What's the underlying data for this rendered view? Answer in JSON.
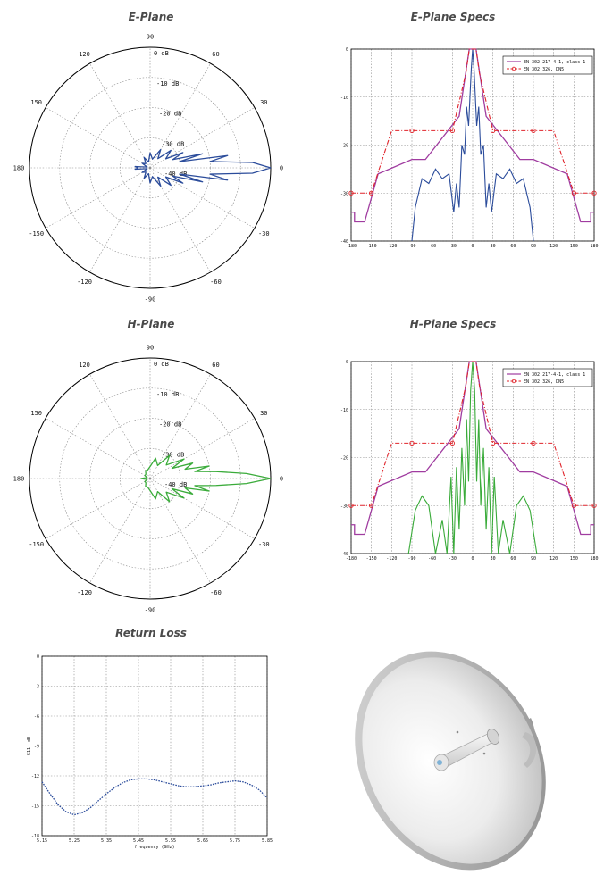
{
  "titles": {
    "e_plane": "E-Plane",
    "e_specs": "E-Plane Specs",
    "h_plane": "H-Plane",
    "h_specs": "H-Plane Specs",
    "return_loss": "Return Loss"
  },
  "polar_labels": {
    "angles": [
      "90",
      "60",
      "30",
      "0",
      "-30",
      "-60",
      "-90",
      "-120",
      "-150",
      "180",
      "150",
      "120"
    ],
    "rings": [
      "0 dB",
      "-10 dB",
      "-20 dB",
      "-30 dB",
      "-40 dB"
    ]
  },
  "specs_legend": [
    "EN 302 217-4-1, class 1",
    "EN 302 326, DN5"
  ],
  "specs_axis": {
    "y_ticks": [
      "0",
      "-10",
      "-20",
      "-30",
      "-40"
    ],
    "x_ticks": [
      "-180",
      "-150",
      "-120",
      "-90",
      "-60",
      "-30",
      "0",
      "30",
      "60",
      "90",
      "120",
      "150",
      "180"
    ]
  },
  "return_axis": {
    "xlabel": "frequency (GHz)",
    "ylabel": "S11| dB",
    "y_ticks": [
      "0",
      "-3",
      "-6",
      "-9",
      "-12",
      "-15",
      "-18"
    ],
    "x_ticks": [
      "5.15",
      "5.25",
      "5.35",
      "5.45",
      "5.55",
      "5.65",
      "5.75",
      "5.85"
    ]
  },
  "colors": {
    "e_plane": "#2b4c9b",
    "h_plane": "#3aab3a",
    "mask_class1": "#a03ca0",
    "mask_dn5": "#e0242b",
    "return_loss": "#2b4c9b"
  },
  "chart_data": [
    {
      "id": "e_plane_polar",
      "type": "line",
      "title": "E-Plane",
      "coordinate_system": "polar",
      "r_range_db": [
        -40,
        0
      ],
      "angle_deg": [
        0,
        3,
        6,
        9,
        12,
        15,
        20,
        25,
        30,
        40,
        50,
        60,
        75,
        90,
        105,
        120,
        135,
        150,
        165,
        175,
        180
      ],
      "gain_db": [
        0,
        -6,
        -20,
        -14,
        -30,
        -22,
        -32,
        -28,
        -34,
        -31,
        -36,
        -33,
        -37,
        -35,
        -38,
        -36,
        -38,
        -37,
        -39,
        -35,
        -36
      ]
    },
    {
      "id": "e_plane_specs",
      "type": "line",
      "title": "E-Plane Specs",
      "xlim": [
        -180,
        180
      ],
      "ylim": [
        -40,
        0
      ],
      "series": [
        {
          "name": "EN 302 217-4-1, class 1",
          "x": [
            -180,
            -175,
            -175,
            -160,
            -140,
            -90,
            -70,
            -20,
            -5,
            5,
            20,
            70,
            90,
            140,
            160,
            175,
            175,
            180
          ],
          "y": [
            -34,
            -34,
            -36,
            -36,
            -26,
            -23,
            -23,
            -14,
            0,
            0,
            -14,
            -23,
            -23,
            -26,
            -36,
            -36,
            -34,
            -34
          ]
        },
        {
          "name": "EN 302 326, DN5",
          "x": [
            -180,
            -150,
            -120,
            -90,
            -30,
            -10,
            -5,
            5,
            10,
            30,
            90,
            120,
            150,
            180
          ],
          "y": [
            -30,
            -30,
            -17,
            -17,
            -17,
            -5,
            0,
            0,
            -5,
            -17,
            -17,
            -17,
            -30,
            -30
          ]
        },
        {
          "name": "",
          "x": [
            -90,
            -85,
            -75,
            -65,
            -55,
            -45,
            -35,
            -28,
            -24,
            -20,
            -16,
            -12,
            -9,
            -6,
            -4,
            -2,
            0,
            2,
            4,
            6,
            9,
            12,
            16,
            20,
            24,
            28,
            35,
            45,
            55,
            65,
            75,
            85,
            90
          ],
          "y": [
            -40,
            -33,
            -27,
            -28,
            -25,
            -27,
            -26,
            -34,
            -28,
            -33,
            -20,
            -22,
            -12,
            -16,
            -10,
            -4,
            0,
            -4,
            -10,
            -16,
            -12,
            -22,
            -20,
            -33,
            -28,
            -34,
            -26,
            -27,
            -25,
            -28,
            -27,
            -33,
            -40
          ]
        }
      ]
    },
    {
      "id": "h_plane_polar",
      "type": "line",
      "title": "H-Plane",
      "coordinate_system": "polar",
      "r_range_db": [
        -40,
        0
      ],
      "angle_deg": [
        0,
        3,
        6,
        9,
        12,
        15,
        20,
        25,
        30,
        40,
        50,
        60,
        75,
        90,
        105,
        120,
        135,
        150,
        165,
        175,
        180
      ],
      "gain_db": [
        0,
        -8,
        -18,
        -25,
        -20,
        -28,
        -25,
        -32,
        -27,
        -33,
        -30,
        -35,
        -33,
        -36,
        -37,
        -37,
        -38,
        -38,
        -39,
        -38,
        -37
      ]
    },
    {
      "id": "h_plane_specs",
      "type": "line",
      "title": "H-Plane Specs",
      "xlim": [
        -180,
        180
      ],
      "ylim": [
        -40,
        0
      ],
      "series": [
        {
          "name": "EN 302 217-4-1, class 1",
          "x": [
            -180,
            -175,
            -175,
            -160,
            -140,
            -90,
            -70,
            -20,
            -5,
            5,
            20,
            70,
            90,
            140,
            160,
            175,
            175,
            180
          ],
          "y": [
            -34,
            -34,
            -36,
            -36,
            -26,
            -23,
            -23,
            -14,
            0,
            0,
            -14,
            -23,
            -23,
            -26,
            -36,
            -36,
            -34,
            -34
          ]
        },
        {
          "name": "EN 302 326, DN5",
          "x": [
            -180,
            -150,
            -120,
            -90,
            -30,
            -10,
            -5,
            5,
            10,
            30,
            90,
            120,
            150,
            180
          ],
          "y": [
            -30,
            -30,
            -17,
            -17,
            -17,
            -5,
            0,
            0,
            -5,
            -17,
            -17,
            -17,
            -30,
            -30
          ]
        },
        {
          "name": "",
          "x": [
            -95,
            -85,
            -75,
            -65,
            -55,
            -45,
            -38,
            -32,
            -28,
            -24,
            -20,
            -16,
            -12,
            -9,
            -6,
            -3,
            0,
            3,
            6,
            9,
            12,
            16,
            20,
            24,
            28,
            32,
            38,
            45,
            55,
            65,
            75,
            85,
            95
          ],
          "y": [
            -40,
            -31,
            -28,
            -30,
            -40,
            -33,
            -40,
            -24,
            -40,
            -22,
            -35,
            -18,
            -30,
            -12,
            -25,
            -6,
            0,
            -6,
            -25,
            -12,
            -30,
            -18,
            -35,
            -22,
            -40,
            -24,
            -40,
            -33,
            -40,
            -30,
            -28,
            -31,
            -40
          ]
        }
      ]
    },
    {
      "id": "return_loss",
      "type": "line",
      "title": "Return Loss",
      "xlabel": "frequency (GHz)",
      "ylabel": "S11| dB",
      "xlim": [
        5.15,
        5.85
      ],
      "ylim": [
        -18,
        0
      ],
      "x": [
        5.15,
        5.175,
        5.2,
        5.225,
        5.25,
        5.275,
        5.3,
        5.325,
        5.35,
        5.375,
        5.4,
        5.425,
        5.45,
        5.475,
        5.5,
        5.525,
        5.55,
        5.575,
        5.6,
        5.625,
        5.65,
        5.675,
        5.7,
        5.725,
        5.75,
        5.775,
        5.8,
        5.825,
        5.85
      ],
      "y": [
        -12.6,
        -13.8,
        -14.9,
        -15.6,
        -15.9,
        -15.7,
        -15.2,
        -14.5,
        -13.8,
        -13.2,
        -12.7,
        -12.4,
        -12.3,
        -12.3,
        -12.4,
        -12.6,
        -12.8,
        -13.0,
        -13.1,
        -13.1,
        -13.0,
        -12.9,
        -12.7,
        -12.6,
        -12.5,
        -12.6,
        -12.9,
        -13.4,
        -14.2
      ]
    }
  ]
}
